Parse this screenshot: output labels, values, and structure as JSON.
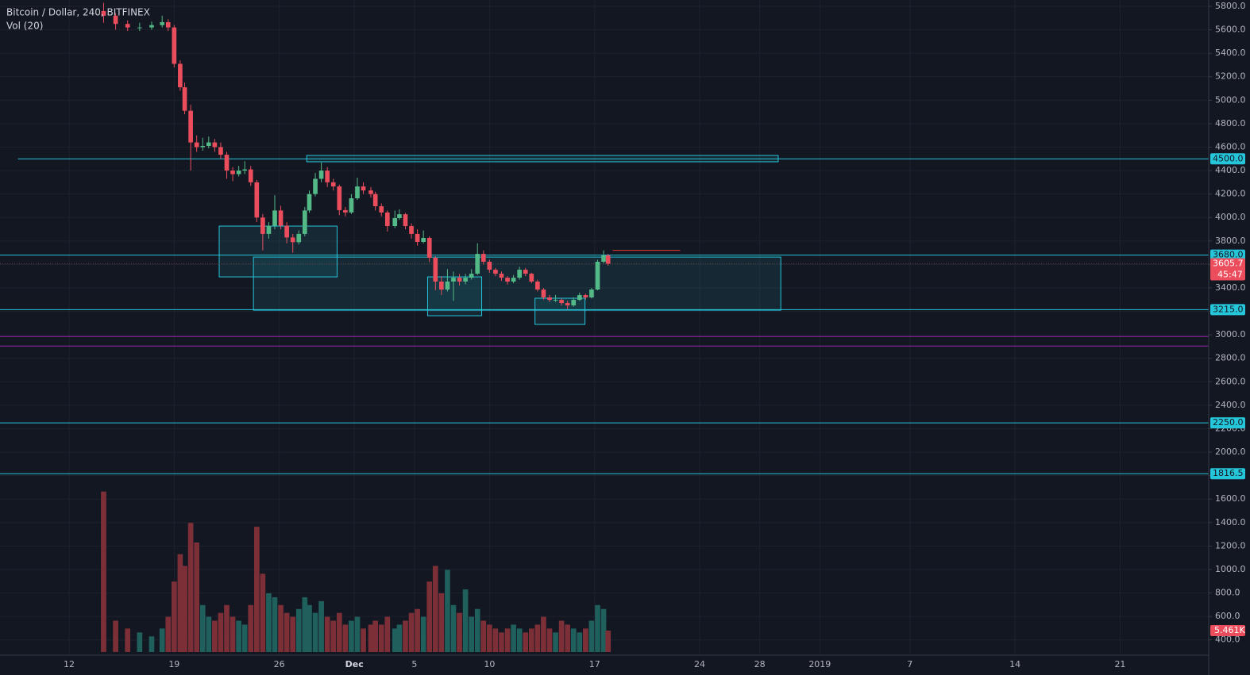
{
  "chart_data": {
    "type": "candlestick",
    "title": "Bitcoin / Dollar, 240, BITFINEX",
    "up_color": "#53b987",
    "down_color": "#eb4d5c",
    "xlim": [
      7.4,
      87.9
    ],
    "ylim": [
      121,
      5854
    ],
    "grid": true,
    "xticks": [
      12,
      19,
      26,
      {
        "value": 31,
        "label": "Dec"
      },
      {
        "value": 35,
        "label": "5"
      },
      {
        "value": 40,
        "label": "10"
      },
      {
        "value": 47,
        "label": "17"
      },
      {
        "value": 54,
        "label": "24"
      },
      {
        "value": 58,
        "label": "28"
      },
      {
        "value": 62,
        "label": "2019"
      },
      {
        "value": 68,
        "label": "7"
      },
      {
        "value": 75,
        "label": "14"
      },
      {
        "value": 82,
        "label": "21"
      }
    ],
    "yticks": [
      {
        "value": 400,
        "label": "400.0"
      },
      {
        "value": 600,
        "label": "600.0"
      },
      {
        "value": 800,
        "label": "800.0"
      },
      {
        "value": 1000,
        "label": "1000.0"
      },
      {
        "value": 1200,
        "label": "1200.0"
      },
      {
        "value": 1400,
        "label": "1400.0"
      },
      {
        "value": 1600,
        "label": "1600.0"
      },
      {
        "value": 1800,
        "label": "1800.0"
      },
      {
        "value": 2000,
        "label": "2000.0"
      },
      {
        "value": 2200,
        "label": "2200.0"
      },
      {
        "value": 2400,
        "label": "2400.0"
      },
      {
        "value": 2600,
        "label": "2600.0"
      },
      {
        "value": 2800,
        "label": "2800.0"
      },
      {
        "value": 3000,
        "label": "3000.0"
      },
      {
        "value": 3200,
        "label": "3200.0"
      },
      {
        "value": 3400,
        "label": "3400.0"
      },
      {
        "value": 3600,
        "label": "3600.0"
      },
      {
        "value": 3800,
        "label": "3800.0"
      },
      {
        "value": 4000,
        "label": "4000.0"
      },
      {
        "value": 4200,
        "label": "4200.0"
      },
      {
        "value": 4400,
        "label": "4400.0"
      },
      {
        "value": 4600,
        "label": "4600.0"
      },
      {
        "value": 4800,
        "label": "4800.0"
      },
      {
        "value": 5000,
        "label": "5000.0"
      },
      {
        "value": 5200,
        "label": "5200.0"
      },
      {
        "value": 5400,
        "label": "5400.0"
      },
      {
        "value": 5600,
        "label": "5600.0"
      },
      {
        "value": 5800,
        "label": "5800.0"
      }
    ],
    "x": [
      14.3,
      15.1,
      15.9,
      16.7,
      17.5,
      18.2,
      18.6,
      19.0,
      19.4,
      19.7,
      20.1,
      20.5,
      20.9,
      21.3,
      21.7,
      22.1,
      22.5,
      22.9,
      23.3,
      23.7,
      24.1,
      24.5,
      24.9,
      25.3,
      25.7,
      26.1,
      26.5,
      26.9,
      27.3,
      27.7,
      28.0,
      28.4,
      28.8,
      29.2,
      29.6,
      30.0,
      30.4,
      30.8,
      31.2,
      31.6,
      32.1,
      32.4,
      32.8,
      33.2,
      33.7,
      34.0,
      34.4,
      34.8,
      35.2,
      35.6,
      36.0,
      36.4,
      36.8,
      37.2,
      37.6,
      38.0,
      38.4,
      38.8,
      39.2,
      39.6,
      40.0,
      40.4,
      40.8,
      41.2,
      41.6,
      42.0,
      42.4,
      42.8,
      43.2,
      43.6,
      44.0,
      44.4,
      44.8,
      45.2,
      45.6,
      46.0,
      46.4,
      46.8,
      47.2,
      47.6,
      47.9
    ],
    "candles": [
      [
        5760,
        5830,
        5660,
        5720
      ],
      [
        5720,
        5740,
        5600,
        5650
      ],
      [
        5650,
        5680,
        5590,
        5620
      ],
      [
        5620,
        5660,
        5590,
        5620
      ],
      [
        5620,
        5670,
        5600,
        5640
      ],
      [
        5640,
        5720,
        5620,
        5665
      ],
      [
        5665,
        5690,
        5590,
        5620
      ],
      [
        5620,
        5640,
        5280,
        5310
      ],
      [
        5310,
        5340,
        5080,
        5110
      ],
      [
        5110,
        5150,
        4880,
        4910
      ],
      [
        4910,
        4960,
        4400,
        4640
      ],
      [
        4640,
        4700,
        4560,
        4600
      ],
      [
        4600,
        4680,
        4570,
        4610
      ],
      [
        4610,
        4690,
        4590,
        4640
      ],
      [
        4640,
        4670,
        4560,
        4600
      ],
      [
        4600,
        4640,
        4500,
        4535
      ],
      [
        4535,
        4560,
        4330,
        4400
      ],
      [
        4400,
        4430,
        4310,
        4370
      ],
      [
        4370,
        4440,
        4350,
        4400
      ],
      [
        4400,
        4480,
        4370,
        4410
      ],
      [
        4410,
        4440,
        4270,
        4300
      ],
      [
        4300,
        4320,
        3960,
        4000
      ],
      [
        4000,
        4030,
        3720,
        3860
      ],
      [
        3860,
        3960,
        3820,
        3930
      ],
      [
        3930,
        4190,
        3900,
        4060
      ],
      [
        4060,
        4100,
        3900,
        3930
      ],
      [
        3930,
        3960,
        3780,
        3830
      ],
      [
        3830,
        3860,
        3700,
        3790
      ],
      [
        3790,
        3890,
        3770,
        3860
      ],
      [
        3860,
        4090,
        3840,
        4060
      ],
      [
        4060,
        4230,
        4040,
        4200
      ],
      [
        4200,
        4380,
        4180,
        4330
      ],
      [
        4330,
        4470,
        4300,
        4400
      ],
      [
        4400,
        4430,
        4260,
        4300
      ],
      [
        4300,
        4330,
        4230,
        4265
      ],
      [
        4265,
        4280,
        4020,
        4063
      ],
      [
        4063,
        4090,
        4010,
        4043
      ],
      [
        4043,
        4200,
        4030,
        4164
      ],
      [
        4164,
        4340,
        4150,
        4265
      ],
      [
        4265,
        4300,
        4200,
        4231
      ],
      [
        4231,
        4260,
        4170,
        4200
      ],
      [
        4200,
        4220,
        4060,
        4096
      ],
      [
        4096,
        4120,
        4010,
        4043
      ],
      [
        4043,
        4060,
        3880,
        3927
      ],
      [
        3927,
        4060,
        3910,
        3995
      ],
      [
        3995,
        4070,
        3980,
        4028
      ],
      [
        4028,
        4040,
        3900,
        3927
      ],
      [
        3927,
        3950,
        3820,
        3860
      ],
      [
        3860,
        3900,
        3760,
        3792
      ],
      [
        3792,
        3890,
        3780,
        3826
      ],
      [
        3826,
        3840,
        3620,
        3657
      ],
      [
        3657,
        3670,
        3380,
        3454
      ],
      [
        3454,
        3500,
        3340,
        3386
      ],
      [
        3386,
        3560,
        3370,
        3454
      ],
      [
        3454,
        3540,
        3290,
        3487
      ],
      [
        3487,
        3520,
        3420,
        3454
      ],
      [
        3454,
        3520,
        3430,
        3487
      ],
      [
        3487,
        3560,
        3470,
        3521
      ],
      [
        3521,
        3780,
        3510,
        3690
      ],
      [
        3690,
        3720,
        3600,
        3623
      ],
      [
        3623,
        3640,
        3530,
        3555
      ],
      [
        3555,
        3570,
        3500,
        3521
      ],
      [
        3521,
        3540,
        3460,
        3487
      ],
      [
        3487,
        3500,
        3430,
        3454
      ],
      [
        3454,
        3510,
        3440,
        3487
      ],
      [
        3487,
        3580,
        3470,
        3555
      ],
      [
        3555,
        3570,
        3500,
        3521
      ],
      [
        3521,
        3530,
        3440,
        3454
      ],
      [
        3454,
        3470,
        3370,
        3386
      ],
      [
        3386,
        3400,
        3300,
        3319
      ],
      [
        3319,
        3340,
        3280,
        3298
      ],
      [
        3298,
        3340,
        3280,
        3298
      ],
      [
        3298,
        3310,
        3250,
        3271
      ],
      [
        3271,
        3290,
        3220,
        3251
      ],
      [
        3251,
        3320,
        3240,
        3298
      ],
      [
        3298,
        3360,
        3290,
        3339
      ],
      [
        3339,
        3350,
        3300,
        3319
      ],
      [
        3319,
        3400,
        3310,
        3386
      ],
      [
        3386,
        3640,
        3380,
        3623
      ],
      [
        3623,
        3720,
        3610,
        3677
      ],
      [
        3677,
        3690,
        3590,
        3605.7
      ]
    ],
    "countdown": "45:47",
    "volume": {
      "name": "Vol (20)",
      "vlim": [
        0,
        45
      ],
      "up_color": "#1f5f5c",
      "down_color": "#7d2f37",
      "last_label": "5.461K",
      "values": [
        41,
        8,
        6,
        5,
        4,
        6,
        9,
        18,
        25,
        22,
        33,
        28,
        12,
        9,
        8,
        10,
        12,
        9,
        8,
        7,
        12,
        32,
        20,
        15,
        14,
        12,
        10,
        9,
        11,
        14,
        12,
        10,
        13,
        9,
        8,
        10,
        7,
        8,
        9,
        6,
        7,
        8,
        7,
        9,
        6,
        7,
        8,
        10,
        11,
        9,
        18,
        22,
        15,
        21,
        12,
        10,
        16,
        9,
        11,
        8,
        7,
        6,
        5,
        6,
        7,
        6,
        5,
        6,
        7,
        9,
        6,
        5,
        8,
        7,
        6,
        5,
        6,
        8,
        12,
        11,
        5.461
      ]
    },
    "levels": [
      {
        "value": 4500,
        "label": "4500.0",
        "color": "#26c6da",
        "from": 8.6
      },
      {
        "value": 3680,
        "label": "3680.0",
        "color": "#26c6da"
      },
      {
        "value": 3215,
        "label": "3215.0",
        "color": "#26c6da"
      },
      {
        "value": 2250,
        "label": "2250.0",
        "color": "#26c6da"
      },
      {
        "value": 1816.5,
        "label": "1816.5",
        "color": "#26c6da"
      },
      {
        "value": 2986,
        "color": "#9c27b0"
      },
      {
        "value": 2905,
        "color": "#9c27b0"
      }
    ],
    "zones": [
      {
        "x0": 22.0,
        "x1": 29.85,
        "y0": 3494,
        "y1": 3927
      },
      {
        "x0": 24.28,
        "x1": 59.4,
        "y0": 3210,
        "y1": 3663
      },
      {
        "x0": 35.88,
        "x1": 39.48,
        "y0": 3163,
        "y1": 3494
      },
      {
        "x0": 43.03,
        "x1": 46.36,
        "y0": 3089,
        "y1": 3312
      },
      {
        "x0": 27.83,
        "x1": 59.23,
        "y0": 4475,
        "y1": 4529
      }
    ],
    "segment": {
      "x0": 48.2,
      "x1": 52.7,
      "value": 3720,
      "color": "#e53935"
    }
  }
}
